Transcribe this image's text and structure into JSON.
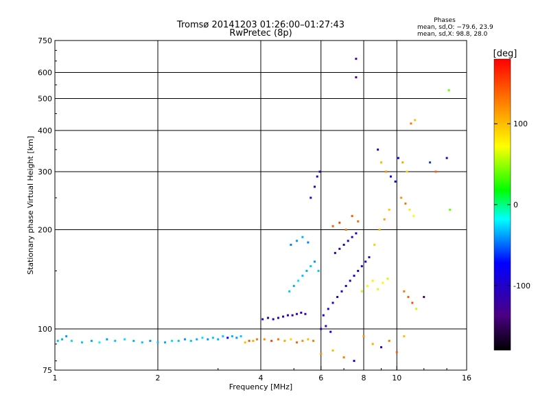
{
  "chart_data": {
    "type": "scatter",
    "title": "Tromsø 20141203 01:26:00–01:27:43",
    "subtitle": "RwPretec (8p)",
    "xlabel": "Frequency [MHz]",
    "ylabel": "Stationary phase Virtual Height [km]",
    "x_scale": "log2",
    "y_scale": "log",
    "xlim": [
      1,
      16
    ],
    "ylim": [
      75,
      750
    ],
    "x_ticks": [
      1,
      2,
      4,
      6,
      8,
      10,
      16
    ],
    "y_ticks": [
      75,
      100,
      200,
      300,
      400,
      500,
      600,
      750
    ],
    "grid": true,
    "legend": {
      "title": "Phases",
      "lines": [
        "mean, sd,O: −79.6, 23.9",
        "mean, sd,X:  98.8, 28.0"
      ]
    },
    "colorbar": {
      "unit": "[deg]",
      "ticks": [
        100,
        0,
        -100
      ],
      "range": [
        -180,
        180
      ],
      "colors": [
        "#000000",
        "#4b0082",
        "#0000ff",
        "#00ffff",
        "#00ff00",
        "#ffff00",
        "#ff8000",
        "#ff0000"
      ]
    },
    "series": [
      {
        "points": [
          [
            1.02,
            92,
            -30
          ],
          [
            1.05,
            93,
            -35
          ],
          [
            1.08,
            95,
            -40
          ],
          [
            1.12,
            92,
            -25
          ],
          [
            1.2,
            91,
            -30
          ],
          [
            1.28,
            92,
            -35
          ],
          [
            1.35,
            91,
            -20
          ],
          [
            1.42,
            93,
            -40
          ],
          [
            1.5,
            92,
            -30
          ],
          [
            1.6,
            93,
            -25
          ],
          [
            1.7,
            92,
            -35
          ],
          [
            1.8,
            91,
            -30
          ],
          [
            1.9,
            92,
            -40
          ],
          [
            2.0,
            91,
            -30
          ],
          [
            2.1,
            91,
            -35
          ],
          [
            2.2,
            92,
            -25
          ],
          [
            2.3,
            92,
            -30
          ],
          [
            2.4,
            93,
            -40
          ],
          [
            2.5,
            92,
            -30
          ],
          [
            2.6,
            93,
            -35
          ],
          [
            2.7,
            94,
            -25
          ],
          [
            2.8,
            93,
            -40
          ],
          [
            2.9,
            94,
            -30
          ],
          [
            3.0,
            93,
            -35
          ],
          [
            3.1,
            95,
            -30
          ],
          [
            3.2,
            94,
            -80
          ],
          [
            3.3,
            95,
            -35
          ],
          [
            3.4,
            94,
            -40
          ],
          [
            3.5,
            95,
            -30
          ],
          [
            3.6,
            91,
            100
          ],
          [
            3.7,
            92,
            140
          ],
          [
            3.8,
            92,
            110
          ],
          [
            3.9,
            93,
            130
          ],
          [
            4.1,
            93,
            120
          ],
          [
            4.3,
            92,
            150
          ],
          [
            4.5,
            93,
            130
          ],
          [
            4.7,
            92,
            110
          ],
          [
            4.9,
            93,
            90
          ],
          [
            5.1,
            91,
            140
          ],
          [
            5.3,
            92,
            120
          ],
          [
            5.5,
            93,
            100
          ],
          [
            5.7,
            92,
            130
          ],
          [
            4.05,
            107,
            -110
          ],
          [
            4.2,
            108,
            -100
          ],
          [
            4.35,
            107,
            -105
          ],
          [
            4.5,
            108,
            -110
          ],
          [
            4.65,
            109,
            -100
          ],
          [
            4.8,
            110,
            -110
          ],
          [
            4.95,
            110,
            -105
          ],
          [
            5.1,
            111,
            -115
          ],
          [
            5.25,
            112,
            -100
          ],
          [
            5.4,
            111,
            -110
          ],
          [
            4.85,
            130,
            -30
          ],
          [
            5.0,
            135,
            -35
          ],
          [
            5.15,
            140,
            -25
          ],
          [
            5.3,
            145,
            -30
          ],
          [
            5.45,
            150,
            -35
          ],
          [
            5.6,
            155,
            -30
          ],
          [
            5.75,
            160,
            -40
          ],
          [
            5.9,
            150,
            -30
          ],
          [
            4.9,
            180,
            -45
          ],
          [
            5.1,
            185,
            -40
          ],
          [
            5.3,
            190,
            -35
          ],
          [
            5.5,
            183,
            -45
          ],
          [
            5.6,
            250,
            -95
          ],
          [
            5.75,
            270,
            -100
          ],
          [
            5.85,
            290,
            -110
          ],
          [
            5.95,
            300,
            -120
          ],
          [
            6.1,
            110,
            -90
          ],
          [
            6.3,
            115,
            -95
          ],
          [
            6.5,
            120,
            -100
          ],
          [
            6.7,
            125,
            -110
          ],
          [
            6.9,
            130,
            -95
          ],
          [
            7.1,
            135,
            -100
          ],
          [
            7.3,
            140,
            -105
          ],
          [
            7.5,
            145,
            -95
          ],
          [
            7.7,
            150,
            -110
          ],
          [
            7.9,
            155,
            -95
          ],
          [
            8.1,
            160,
            -100
          ],
          [
            8.3,
            165,
            -105
          ],
          [
            6.0,
            100,
            -120
          ],
          [
            6.2,
            102,
            -110
          ],
          [
            6.4,
            98,
            -95
          ],
          [
            6.6,
            170,
            -110
          ],
          [
            6.8,
            175,
            -115
          ],
          [
            7.0,
            180,
            -100
          ],
          [
            7.2,
            185,
            -105
          ],
          [
            7.4,
            190,
            -120
          ],
          [
            7.6,
            195,
            -95
          ],
          [
            6.5,
            205,
            140
          ],
          [
            6.8,
            210,
            150
          ],
          [
            7.1,
            200,
            130
          ],
          [
            7.4,
            220,
            145
          ],
          [
            7.7,
            212,
            135
          ],
          [
            7.9,
            130,
            60
          ],
          [
            8.2,
            135,
            70
          ],
          [
            8.5,
            140,
            80
          ],
          [
            8.8,
            132,
            65
          ],
          [
            9.1,
            138,
            75
          ],
          [
            9.4,
            142,
            60
          ],
          [
            8.6,
            180,
            90
          ],
          [
            8.9,
            200,
            100
          ],
          [
            9.2,
            215,
            110
          ],
          [
            9.5,
            230,
            95
          ],
          [
            7.6,
            660,
            -130
          ],
          [
            7.6,
            580,
            -130
          ],
          [
            8.8,
            350,
            -90
          ],
          [
            9.0,
            320,
            100
          ],
          [
            9.3,
            300,
            120
          ],
          [
            9.6,
            290,
            -80
          ],
          [
            9.9,
            280,
            -70
          ],
          [
            10.1,
            330,
            -90
          ],
          [
            10.4,
            320,
            110
          ],
          [
            10.7,
            300,
            90
          ],
          [
            10.3,
            250,
            120
          ],
          [
            10.6,
            240,
            130
          ],
          [
            10.9,
            230,
            80
          ],
          [
            11.2,
            220,
            70
          ],
          [
            10.5,
            130,
            130
          ],
          [
            10.8,
            125,
            140
          ],
          [
            11.1,
            120,
            150
          ],
          [
            11.4,
            115,
            60
          ],
          [
            11.0,
            420,
            130
          ],
          [
            11.3,
            430,
            100
          ],
          [
            12.5,
            320,
            -60
          ],
          [
            13.0,
            300,
            140
          ],
          [
            14.0,
            330,
            -100
          ],
          [
            14.2,
            530,
            40
          ],
          [
            14.3,
            230,
            40
          ],
          [
            8.0,
            95,
            120
          ],
          [
            8.5,
            90,
            110
          ],
          [
            9.0,
            88,
            -100
          ],
          [
            9.5,
            92,
            130
          ],
          [
            10.0,
            85,
            140
          ],
          [
            10.5,
            95,
            100
          ],
          [
            6.0,
            84,
            120
          ],
          [
            6.5,
            86,
            100
          ],
          [
            7.0,
            82,
            130
          ],
          [
            7.5,
            80,
            -100
          ],
          [
            12.0,
            125,
            -140
          ]
        ]
      }
    ]
  }
}
